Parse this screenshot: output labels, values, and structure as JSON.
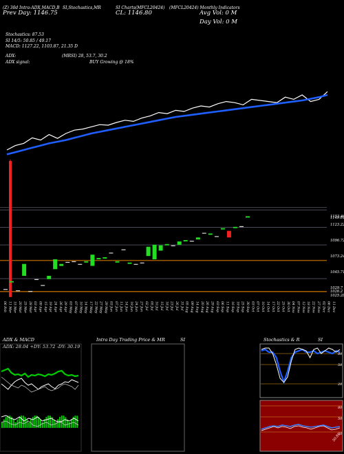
{
  "header": {
    "line1_left": "(Z) 30d Intra-ADX,MACD,B",
    "line1_mid": "SI,Stochastics,MR",
    "line1_right": "SI Charts(MFCL20424)",
    "line1_far": "(MFCL20424) Monthly Indicators",
    "prev_day": "Prev Day: 1146.75",
    "close": "CL: 1146.80",
    "avg_vol": "Avg Vol: 0   M",
    "day_vol": "Day Vol: 0   M",
    "stochastics": "Stochastics: 87.53",
    "si": "SI 14/5: 50.85 / 49.17",
    "macd": "MACD: 1127.22, 1103.87, 21.35 D",
    "adx": "ADX:",
    "mrsi": "(MRSI) 28,  53.7,  30.2",
    "adx_signal": "ADX signal:",
    "buy": "BUY Growing @ 18%"
  },
  "price_axis": [
    "1153.46",
    "1149.61",
    "1123.22",
    "1096.72",
    "1073.24",
    "1045.71",
    "1029.7",
    "1026.2",
    "1025.28"
  ],
  "date_axis": [
    "06 Feb",
    "11 Mar",
    "15 Mar",
    "20 Mar",
    "25 Mar",
    "28 Mar",
    "03 Apr",
    "09 Apr",
    "15 Apr",
    "19 Apr",
    "24 Apr",
    "26 Apr",
    "29 Apr",
    "03 May",
    "07 May",
    "10 May",
    "14 May",
    "17 May",
    "22 May",
    "27 May",
    "29 May",
    "03 Jun",
    "07 Jun",
    "11 Jun",
    "14 Jun",
    "19 Jun",
    "24 Jun",
    "27 Jun",
    "02 Jul",
    "05 Jul",
    "10 Jul",
    "15 Jul",
    "18 Jul",
    "23 Jul",
    "26 Jul",
    "31 Jul",
    "05 Aug",
    "09 Aug",
    "14 Aug",
    "20 Aug",
    "26 Aug",
    "29 Aug",
    "03 Sep",
    "06 Sep",
    "11 Sep",
    "16 Sep",
    "19 Sep",
    "25 Sep",
    "30 Sep",
    "03 Oct",
    "07 Oct",
    "10 Oct",
    "14 Oct",
    "17 Oct",
    "22 Oct",
    "25 Oct",
    "30 Oct",
    "04 Nov",
    "07 Nov",
    "12 Nov",
    "18 Nov",
    "22 Nov",
    "27 Nov",
    "02 Dec",
    "06 Dec",
    "11 Dec"
  ],
  "panels": {
    "adx_macd_title": "ADX  & MACD",
    "adx_values": "ADX: 28.04  +DY: 53.72  -DY: 30.19",
    "intra_title": "Intra  Day Trading Price  & MR",
    "intra_si": "SI",
    "stoch_title": "Stochastics & R",
    "stoch_si": "SI",
    "stoch_levels": [
      "80",
      "50",
      "20"
    ],
    "si_levels": [
      "80",
      "50",
      "20"
    ],
    "si_value": "50.85"
  },
  "colors": {
    "background": "#000000",
    "price_line": "#ffffff",
    "sma_line": "#1f5fff",
    "up_candle": "#22dd22",
    "down_candle": "#ee2222",
    "hline_orange": "#a05a00",
    "hline_gray": "#555566",
    "si_panel": "#8b0000",
    "adx_green": "#00cc00",
    "adx_white": "#ffffff"
  },
  "chart_data": {
    "type": "line",
    "series": [
      {
        "values": [
          1040,
          1048,
          1052,
          1062,
          1058,
          1068,
          1061,
          1070,
          1076,
          1078,
          1082,
          1086,
          1085,
          1090,
          1094,
          1092,
          1098,
          1102,
          1108,
          1106,
          1112,
          1110,
          1116,
          1120,
          1118,
          1124,
          1128,
          1126,
          1122,
          1132,
          1130,
          1128,
          1126,
          1136,
          1132,
          1140,
          1128,
          1132,
          1146
        ]
      },
      {
        "values": [
          1032,
          1036,
          1040,
          1044,
          1048,
          1052,
          1055,
          1058,
          1062,
          1066,
          1070,
          1073,
          1076,
          1079,
          1082,
          1085,
          1088,
          1091,
          1094,
          1097,
          1100,
          1102,
          1104,
          1106,
          1108,
          1110,
          1112,
          1114,
          1116,
          1118,
          1120,
          1122,
          1124,
          1126,
          1128,
          1130,
          1133,
          1136,
          1140
        ]
      }
    ],
    "candles": [
      {
        "o": 1030,
        "c": 1029,
        "dir": "up"
      },
      {
        "o": 1040,
        "c": 1042,
        "dir": "up"
      },
      {
        "o": 1028,
        "c": 1028,
        "dir": "up"
      },
      {
        "o": 1050,
        "c": 1068,
        "dir": "up"
      },
      {
        "o": 1027,
        "c": 1027,
        "dir": "up"
      },
      {
        "o": 1045,
        "c": 1045,
        "dir": "up"
      },
      {
        "o": 1035,
        "c": 1036,
        "dir": "up"
      },
      {
        "o": 1045,
        "c": 1050,
        "dir": "up"
      },
      {
        "o": 1060,
        "c": 1075,
        "dir": "up"
      },
      {
        "o": 1065,
        "c": 1068,
        "dir": "up"
      },
      {
        "o": 1071,
        "c": 1071,
        "dir": "up"
      },
      {
        "o": 1072,
        "c": 1072,
        "dir": "up"
      },
      {
        "o": 1068,
        "c": 1068,
        "dir": "up"
      },
      {
        "o": 1070,
        "c": 1072,
        "dir": "up"
      },
      {
        "o": 1065,
        "c": 1082,
        "dir": "up"
      },
      {
        "o": 1075,
        "c": 1077,
        "dir": "up"
      },
      {
        "o": 1076,
        "c": 1078,
        "dir": "up"
      },
      {
        "o": 1085,
        "c": 1085,
        "dir": "up"
      },
      {
        "o": 1070,
        "c": 1072,
        "dir": "up"
      },
      {
        "o": 1090,
        "c": 1090,
        "dir": "up"
      },
      {
        "o": 1068,
        "c": 1070,
        "dir": "up"
      },
      {
        "o": 1068,
        "c": 1068,
        "dir": "up"
      },
      {
        "o": 1070,
        "c": 1070,
        "dir": "up"
      },
      {
        "o": 1080,
        "c": 1094,
        "dir": "up"
      },
      {
        "o": 1075,
        "c": 1097,
        "dir": "up"
      },
      {
        "o": 1088,
        "c": 1096,
        "dir": "up"
      },
      {
        "o": 1096,
        "c": 1098,
        "dir": "up"
      },
      {
        "o": 1096,
        "c": 1096,
        "dir": "up"
      },
      {
        "o": 1097,
        "c": 1102,
        "dir": "up"
      },
      {
        "o": 1102,
        "c": 1104,
        "dir": "up"
      },
      {
        "o": 1103,
        "c": 1103,
        "dir": "up"
      },
      {
        "o": 1105,
        "c": 1108,
        "dir": "up"
      },
      {
        "o": 1115,
        "c": 1115,
        "dir": "up"
      },
      {
        "o": 1112,
        "c": 1114,
        "dir": "up"
      },
      {
        "o": 1110,
        "c": 1110,
        "dir": "up"
      },
      {
        "o": 1120,
        "c": 1122,
        "dir": "up"
      },
      {
        "o": 1118,
        "c": 1108,
        "dir": "down"
      },
      {
        "o": 1122,
        "c": 1124,
        "dir": "up"
      },
      {
        "o": 1125,
        "c": 1125,
        "dir": "up"
      },
      {
        "o": 1138,
        "c": 1140,
        "dir": "up"
      }
    ],
    "spike": {
      "high": 1200,
      "low": 1020
    },
    "ylim": [
      1020,
      1200
    ]
  }
}
